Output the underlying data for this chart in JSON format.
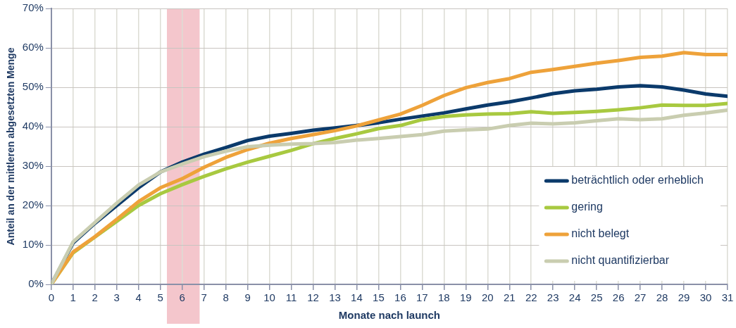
{
  "chart_data": {
    "type": "line",
    "xlabel": "Monate nach launch",
    "ylabel": "Anteil an der mittleren abgesetzten Menge",
    "x": [
      0,
      1,
      2,
      3,
      4,
      5,
      6,
      7,
      8,
      9,
      10,
      11,
      12,
      13,
      14,
      15,
      16,
      17,
      18,
      19,
      20,
      21,
      22,
      23,
      24,
      25,
      26,
      27,
      28,
      29,
      30,
      31
    ],
    "xlim": [
      0,
      31
    ],
    "xticks": [
      0,
      1,
      2,
      3,
      4,
      5,
      6,
      7,
      8,
      9,
      10,
      11,
      12,
      13,
      14,
      15,
      16,
      17,
      18,
      19,
      20,
      21,
      22,
      23,
      24,
      25,
      26,
      27,
      28,
      29,
      30,
      31
    ],
    "ylim": [
      0,
      70
    ],
    "yticks": [
      {
        "value": 0,
        "label": "0%"
      },
      {
        "value": 10,
        "label": "10%"
      },
      {
        "value": 20,
        "label": "20%"
      },
      {
        "value": 30,
        "label": "30%"
      },
      {
        "value": 40,
        "label": "40%"
      },
      {
        "value": 50,
        "label": "50%"
      },
      {
        "value": 60,
        "label": "60%"
      },
      {
        "value": 70,
        "label": "70%"
      }
    ],
    "grid": true,
    "legend": "bottom right",
    "marker": "none",
    "line_style": "solid",
    "bands": [
      {
        "axis": "x",
        "from": 5.3,
        "to": 6.8,
        "color": "#f4c6cc"
      }
    ],
    "series": [
      {
        "name": "beträchtlich oder erheblich",
        "color": "#0b3a6b",
        "values": [
          0,
          10.5,
          15.5,
          20,
          24.5,
          28.5,
          31,
          33,
          34.7,
          36.5,
          37.6,
          38.3,
          39.1,
          39.7,
          40.3,
          41,
          41.9,
          42.7,
          43.5,
          44.5,
          45.5,
          46.3,
          47.3,
          48.4,
          49.1,
          49.5,
          50.1,
          50.4,
          50.1,
          49.3,
          48.3,
          47.7
        ]
      },
      {
        "name": "gering",
        "color": "#a8c940",
        "values": [
          0,
          8,
          12,
          16,
          20,
          23,
          25.3,
          27.4,
          29.3,
          31,
          32.5,
          34,
          35.7,
          37,
          38.2,
          39.5,
          40.3,
          41.8,
          42.6,
          43,
          43.2,
          43.3,
          43.8,
          43.4,
          43.6,
          43.9,
          44.3,
          44.8,
          45.5,
          45.4,
          45.4,
          45.9
        ]
      },
      {
        "name": "nicht belegt",
        "color": "#eea23a",
        "values": [
          0,
          8.2,
          12.1,
          16.5,
          21,
          24.5,
          26.8,
          29.7,
          32.2,
          34.2,
          35.8,
          37,
          38,
          39,
          40.2,
          41.7,
          43.2,
          45.4,
          47.9,
          49.9,
          51.2,
          52.2,
          53.8,
          54.5,
          55.3,
          56.1,
          56.8,
          57.6,
          57.9,
          58.8,
          58.3,
          58.3
        ]
      },
      {
        "name": "nicht quantifizierbar",
        "color": "#c9cdb0",
        "values": [
          0,
          10.8,
          15.7,
          20.6,
          25.2,
          28.5,
          30.5,
          32.4,
          33.8,
          34.9,
          35.3,
          35.6,
          35.7,
          36,
          36.6,
          37,
          37.5,
          38,
          38.9,
          39.2,
          39.4,
          40.3,
          40.9,
          40.7,
          41,
          41.5,
          42,
          41.8,
          42,
          42.9,
          43.5,
          44.2
        ]
      }
    ]
  }
}
